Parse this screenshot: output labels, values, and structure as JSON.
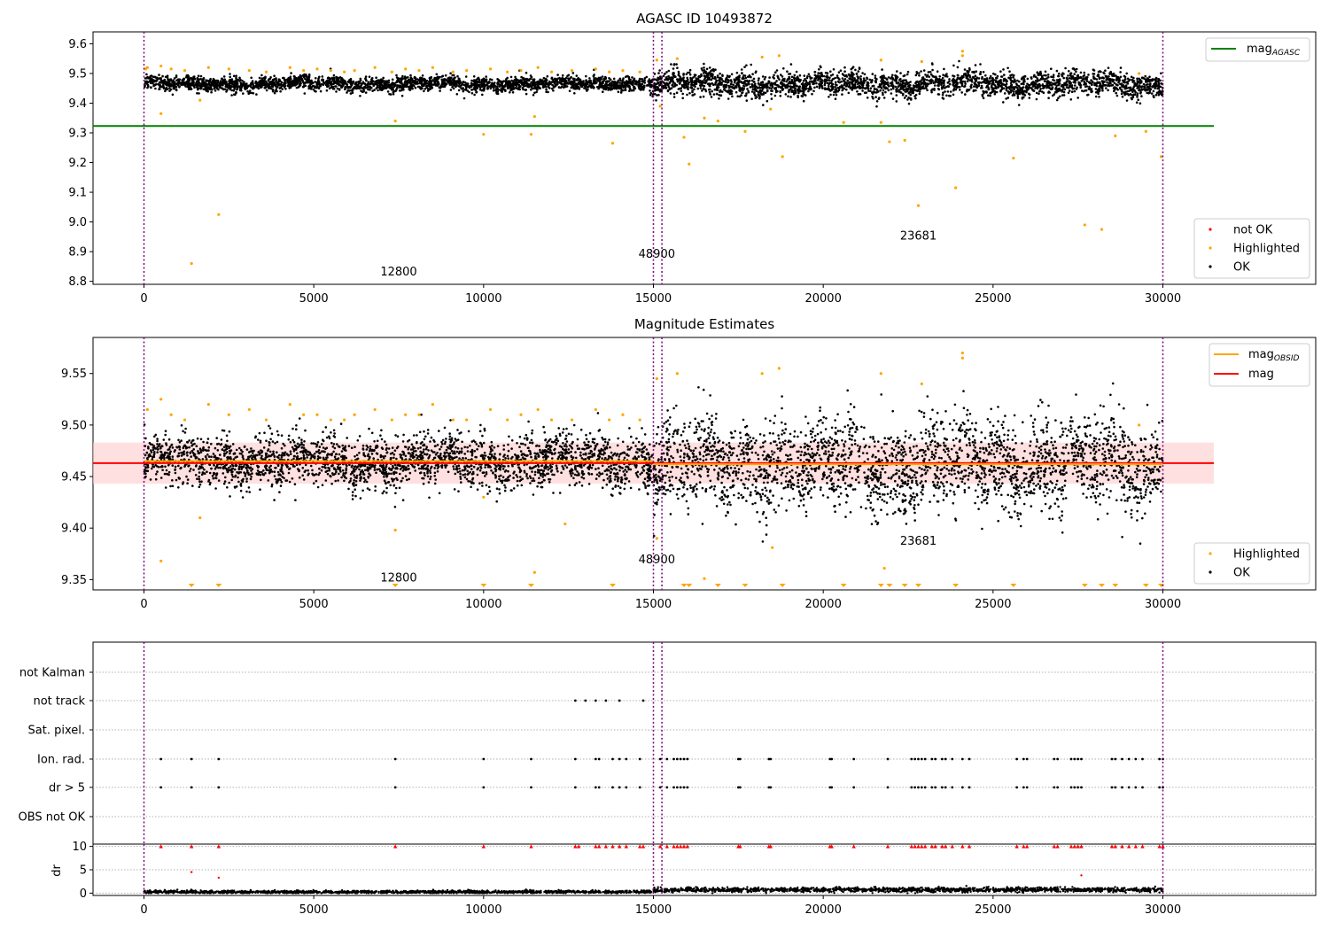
{
  "chart_data": [
    {
      "type": "scatter",
      "title": "AGASC ID 10493872",
      "xlim": [
        -1500,
        34500
      ],
      "ylim": [
        8.79,
        9.64
      ],
      "xticks": [
        0,
        5000,
        10000,
        15000,
        20000,
        25000,
        30000
      ],
      "yticks": [
        8.8,
        8.9,
        9.0,
        9.1,
        9.2,
        9.3,
        9.4,
        9.5,
        9.6
      ],
      "ytick_decimals": 1,
      "grid": false,
      "legend_upper": {
        "position": "top-right",
        "entries": [
          {
            "label": "mag",
            "sub": "AGASC",
            "color": "#008000"
          }
        ]
      },
      "legend_lower": {
        "position": "bottom-right",
        "entries": [
          {
            "label": "not OK",
            "color": "#ff0000"
          },
          {
            "label": "Highlighted",
            "color": "#ffa500"
          },
          {
            "label": "OK",
            "color": "#000000"
          }
        ]
      },
      "reference_lines": [
        {
          "y": 9.323,
          "x_range": [
            -1500,
            31500
          ],
          "color": "#008000"
        }
      ],
      "observation_boundaries": [
        0,
        15000,
        15250,
        30000
      ],
      "annotations": [
        {
          "text": "12800",
          "x": 7500,
          "y": 8.82
        },
        {
          "text": "48900",
          "x": 15100,
          "y": 8.88
        },
        {
          "text": "23681",
          "x": 22800,
          "y": 8.94
        }
      ],
      "ok_series": {
        "color": "#000000",
        "segments": [
          {
            "x_range": [
              0,
              15000
            ],
            "center": 9.465,
            "spread": 0.022
          },
          {
            "x_range": [
              15000,
              30000
            ],
            "center": 9.465,
            "spread": 0.038
          }
        ]
      },
      "highlighted_points": {
        "color": "#ffa500",
        "x": [
          50,
          500,
          1400,
          1650,
          2200,
          7400,
          10000,
          11400,
          11500,
          13800,
          15200,
          15900,
          16050,
          16500,
          16900,
          17700,
          18450,
          18800,
          20600,
          21700,
          21950,
          22400,
          22800,
          23900,
          25600,
          27700,
          28200,
          28600,
          29500,
          29950
        ],
        "y": [
          9.515,
          9.365,
          8.86,
          9.41,
          9.025,
          9.34,
          9.295,
          9.295,
          9.355,
          9.265,
          9.39,
          9.285,
          9.195,
          9.35,
          9.34,
          9.305,
          9.38,
          9.22,
          9.335,
          9.335,
          9.27,
          9.275,
          9.055,
          9.115,
          9.215,
          8.99,
          8.975,
          9.29,
          9.305,
          9.22
        ],
        "upper_edge_x": [
          100,
          500,
          800,
          1200,
          1900,
          2500,
          3100,
          3600,
          4300,
          4700,
          5100,
          5500,
          5900,
          6200,
          6800,
          7300,
          7700,
          8100,
          8500,
          9100,
          9500,
          10200,
          10700,
          11100,
          11600,
          12000,
          12600,
          13300,
          13700,
          14100,
          14600,
          15100,
          15700,
          18200,
          18700,
          21700,
          22900,
          24100,
          24100,
          29300
        ],
        "upper_edge_y": [
          9.52,
          9.525,
          9.515,
          9.51,
          9.52,
          9.515,
          9.51,
          9.505,
          9.52,
          9.51,
          9.515,
          9.51,
          9.505,
          9.51,
          9.52,
          9.505,
          9.515,
          9.51,
          9.52,
          9.505,
          9.51,
          9.515,
          9.505,
          9.51,
          9.52,
          9.505,
          9.51,
          9.515,
          9.505,
          9.51,
          9.505,
          9.545,
          9.55,
          9.555,
          9.56,
          9.545,
          9.54,
          9.575,
          9.56,
          9.5
        ]
      }
    },
    {
      "type": "scatter",
      "title": "Magnitude Estimates",
      "xlim": [
        -1500,
        34500
      ],
      "ylim": [
        9.34,
        9.585
      ],
      "xticks": [
        0,
        5000,
        10000,
        15000,
        20000,
        25000,
        30000
      ],
      "yticks": [
        9.35,
        9.4,
        9.45,
        9.5,
        9.55
      ],
      "ytick_decimals": 2,
      "grid": false,
      "legend_upper": {
        "position": "top-right",
        "entries": [
          {
            "label": "mag",
            "sub": "OBSID",
            "color": "#ffa500"
          },
          {
            "label": "mag",
            "sub": "",
            "color": "#ff0000"
          }
        ]
      },
      "legend_lower": {
        "position": "bottom-right",
        "entries": [
          {
            "label": "Highlighted",
            "color": "#ffa500"
          },
          {
            "label": "OK",
            "color": "#000000"
          }
        ]
      },
      "reference_lines": [
        {
          "y": 9.463,
          "x_range": [
            -1500,
            31500
          ],
          "color": "#ff0000"
        }
      ],
      "reference_band": {
        "y_range": [
          9.443,
          9.483
        ],
        "x_range": [
          -1500,
          31500
        ],
        "color": "#ffcccc"
      },
      "obsid_steps": [
        {
          "x_range": [
            0,
            15000
          ],
          "y": 9.465
        },
        {
          "x_range": [
            15000,
            30000
          ],
          "y": 9.462
        }
      ],
      "observation_boundaries": [
        0,
        15000,
        15250,
        30000
      ],
      "annotations": [
        {
          "text": "12800",
          "x": 7500,
          "y": 9.348
        },
        {
          "text": "48900",
          "x": 15100,
          "y": 9.366
        },
        {
          "text": "23681",
          "x": 22800,
          "y": 9.384
        }
      ],
      "ok_series": {
        "color": "#000000",
        "segments": [
          {
            "x_range": [
              0,
              15000
            ],
            "center": 9.465,
            "spread": 0.022
          },
          {
            "x_range": [
              15000,
              30000
            ],
            "center": 9.462,
            "spread": 0.04
          }
        ]
      },
      "highlighted_points": {
        "color": "#ffa500",
        "x": [
          500,
          1650,
          10000,
          11500,
          12400,
          7400,
          15100,
          16500,
          18500,
          21800
        ],
        "y": [
          9.368,
          9.41,
          9.43,
          9.357,
          9.404,
          9.398,
          9.39,
          9.351,
          9.381,
          9.361
        ],
        "upper_edge_x": [
          100,
          500,
          800,
          1200,
          1900,
          2500,
          3100,
          3600,
          4300,
          4700,
          5100,
          5500,
          5900,
          6200,
          6800,
          7300,
          7700,
          8100,
          8500,
          9100,
          9500,
          10200,
          10700,
          11100,
          11600,
          12000,
          12600,
          13300,
          13700,
          14100,
          14600,
          15100,
          15700,
          18200,
          18700,
          21700,
          22900,
          24100,
          24100,
          29300
        ],
        "upper_edge_y": [
          9.515,
          9.525,
          9.51,
          9.505,
          9.52,
          9.51,
          9.515,
          9.505,
          9.52,
          9.51,
          9.51,
          9.505,
          9.505,
          9.51,
          9.515,
          9.505,
          9.51,
          9.51,
          9.52,
          9.505,
          9.505,
          9.515,
          9.505,
          9.51,
          9.515,
          9.505,
          9.505,
          9.515,
          9.505,
          9.51,
          9.505,
          9.545,
          9.55,
          9.55,
          9.555,
          9.55,
          9.54,
          9.57,
          9.565,
          9.5
        ]
      },
      "below_range_markers": {
        "color": "#ffa500",
        "x": [
          1400,
          2200,
          7400,
          10000,
          11400,
          13800,
          15900,
          16050,
          16900,
          17700,
          18800,
          20600,
          21700,
          21950,
          22400,
          22800,
          23900,
          25600,
          27700,
          28200,
          28600,
          29500,
          29950
        ]
      }
    },
    {
      "type": "scatter",
      "title": "",
      "xlim": [
        -1500,
        34500
      ],
      "flag_rows": [
        "not Kalman",
        "not track",
        "Sat. pixel.",
        "Ion. rad.",
        "dr > 5",
        "OBS not OK"
      ],
      "flags": {
        "not track": [
          12700,
          13000,
          13300,
          13600,
          14000,
          14700
        ],
        "Ion. rad.": [
          500,
          1400,
          2200,
          7400,
          10000,
          11400,
          12700,
          13300,
          13400,
          13800,
          14000,
          14200,
          14600,
          15200,
          15400,
          15600,
          15700,
          15800,
          15900,
          16000,
          17500,
          17550,
          18400,
          18450,
          20200,
          20250,
          20900,
          21900,
          22600,
          22700,
          22800,
          22900,
          23000,
          23200,
          23300,
          23500,
          23600,
          23800,
          24100,
          24300,
          25700,
          25900,
          26000,
          26800,
          26900,
          27300,
          27400,
          27500,
          27600,
          28500,
          28600,
          28800,
          29000,
          29200,
          29400,
          29900,
          30000
        ],
        "dr > 5": [
          500,
          1400,
          2200,
          7400,
          10000,
          11400,
          12700,
          13300,
          13400,
          13800,
          14000,
          14200,
          14600,
          15200,
          15400,
          15600,
          15700,
          15800,
          15900,
          16000,
          17500,
          17550,
          18400,
          18450,
          20200,
          20250,
          20900,
          21900,
          22600,
          22700,
          22800,
          22900,
          23000,
          23200,
          23300,
          23500,
          23600,
          23800,
          24100,
          24300,
          25700,
          25900,
          26000,
          26800,
          26900,
          27300,
          27400,
          27500,
          27600,
          28500,
          28600,
          28800,
          29000,
          29200,
          29400,
          29900,
          30000
        ]
      },
      "observation_boundaries": [
        0,
        15000,
        15250,
        30000
      ]
    },
    {
      "type": "scatter",
      "title": "",
      "ylabel": "dr",
      "xlim": [
        -1500,
        34500
      ],
      "ylim": [
        -0.5,
        10.5
      ],
      "xticks": [
        0,
        5000,
        10000,
        15000,
        20000,
        25000,
        30000
      ],
      "yticks": [
        0,
        5,
        10
      ],
      "ytick_decimals": 0,
      "ok_series": {
        "color": "#000000",
        "segments": [
          {
            "x_range": [
              0,
              15000
            ],
            "center": 0.25,
            "spread": 0.25
          },
          {
            "x_range": [
              15000,
              30000
            ],
            "center": 0.7,
            "spread": 0.4
          }
        ]
      },
      "clipped_points": {
        "color": "#ff0000",
        "y": 10,
        "x": [
          500,
          1400,
          2200,
          7400,
          10000,
          11400,
          12700,
          12800,
          13300,
          13400,
          13600,
          13800,
          14000,
          14200,
          14600,
          14700,
          15200,
          15400,
          15600,
          15700,
          15800,
          15900,
          16000,
          17500,
          17550,
          18400,
          18450,
          20200,
          20250,
          20900,
          21900,
          22600,
          22700,
          22800,
          22900,
          23000,
          23200,
          23300,
          23500,
          23600,
          23800,
          24100,
          24300,
          25700,
          25900,
          26000,
          26800,
          26900,
          27300,
          27400,
          27500,
          27600,
          28500,
          28600,
          28800,
          29000,
          29200,
          29400,
          29900,
          30000
        ]
      },
      "red_points": {
        "x": [
          1400,
          2200,
          27600
        ],
        "y": [
          4.5,
          3.3,
          3.8
        ]
      },
      "observation_boundaries": [
        0,
        15000,
        15250,
        30000
      ]
    }
  ]
}
